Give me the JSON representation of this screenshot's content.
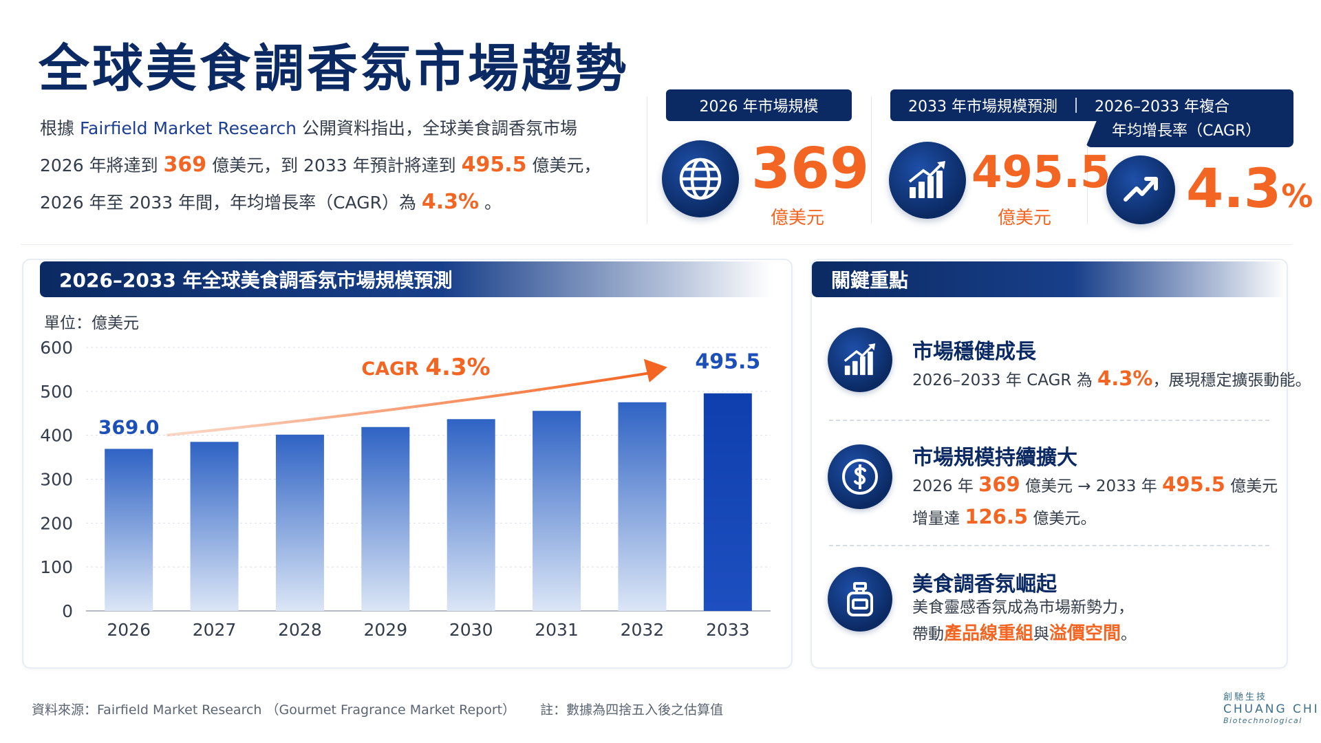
{
  "title": "全球美食調香氛市場趨勢",
  "intro": {
    "p1": "根據 ",
    "source": "Fairfield Market Research",
    "p2": " 公開資料指出，全球美食調香氛市場",
    "p3": "2026 年將達到 ",
    "v1": "369",
    "p4": " 億美元，到 2033 年預計將達到 ",
    "v2": "495.5",
    "p5": " 億美元，",
    "p6": "2026 年至 2033 年間，年均增長率（CAGR）為 ",
    "v3": "4.3%",
    "p7": " 。"
  },
  "kpis": {
    "k1_tag": "2026 年市場規模",
    "k1_value": "369",
    "k1_unit": "億美元",
    "k2_tag": "2033 年市場規模預測",
    "k2_value": "495.5",
    "k2_unit": "億美元",
    "k3_tag_line1": "2026–2033 年複合",
    "k3_tag_line2": "年均增長率（CAGR）",
    "k3_value": "4.3",
    "k3_pct": "%"
  },
  "chart_panel": {
    "heading": "2026–2033 年全球美食調香氛市場規模預測",
    "unit": "單位：億美元"
  },
  "chart_data": {
    "type": "bar",
    "categories": [
      "2026",
      "2027",
      "2028",
      "2029",
      "2030",
      "2031",
      "2032",
      "2033"
    ],
    "values": [
      369.0,
      384.9,
      401.4,
      418.7,
      436.7,
      455.5,
      475.1,
      495.5
    ],
    "ylim": [
      0,
      600
    ],
    "yticks": [
      0,
      100,
      200,
      300,
      400,
      500,
      600
    ],
    "data_labels": {
      "first": "369.0",
      "last": "495.5"
    },
    "annotation": {
      "prefix": "CAGR ",
      "value": "4.3%"
    },
    "grid": true,
    "bar_color_top": "#2f63c4",
    "bar_color_bottom": "#dbe6f6",
    "last_bar_color": "#0f3fae",
    "arrow_color": "#f26522"
  },
  "key_points": {
    "heading": "關鍵重點",
    "item1": {
      "title": "市場穩健成長",
      "t1": "2026–2033 年 CAGR 為 ",
      "hl": "4.3%",
      "t2": "，展現穩定擴張動能。",
      "icon": "growth-chart-icon"
    },
    "item2": {
      "title": "市場規模持續擴大",
      "a1": "2026 年 ",
      "v1": "369",
      "a2": " 億美元 → 2033 年 ",
      "v2": "495.5",
      "a3": " 億美元",
      "b1": "增量達 ",
      "v3": "126.5",
      "b2": " 億美元。",
      "icon": "dollar-coin-icon"
    },
    "item3": {
      "title": "美食調香氛崛起",
      "l1": "美食靈感香氛成為市場新勢力，",
      "l2a": "帶動",
      "l2b": "產品線重組",
      "l2c": "與",
      "l2d": "溢價空間",
      "l2e": "。",
      "icon": "perfume-bottle-icon"
    }
  },
  "footer": {
    "source": "資料來源：Fairfield Market Research （Gourmet Fragrance Market Report）",
    "note": "註：數據為四捨五入後之估算值"
  },
  "logo": {
    "cn": "創馳生技",
    "en": "CHUANG CHI",
    "sub": "Biotechnological"
  },
  "colors": {
    "navy": "#0b2a63",
    "accent": "#f26522",
    "bar_blue": "#2f63c4"
  }
}
